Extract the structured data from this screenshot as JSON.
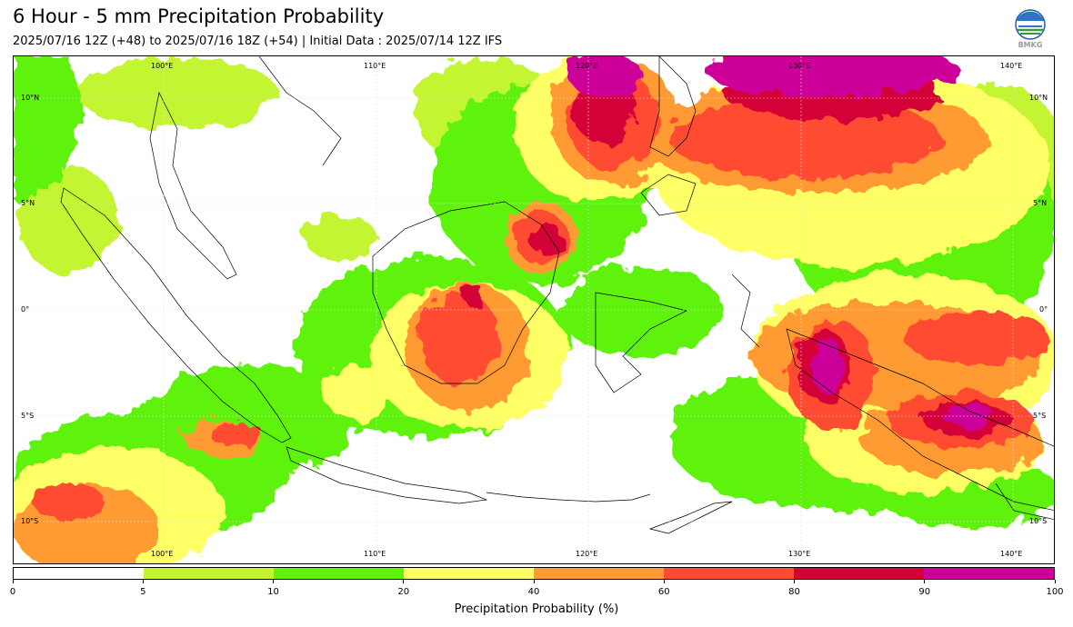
{
  "header": {
    "title": "6 Hour - 5 mm Precipitation Probability",
    "subtitle": "2025/07/16 12Z (+48) to 2025/07/16 18Z (+54) | Initial Data : 2025/07/14 12Z IFS",
    "logo_text": "BMKG"
  },
  "map": {
    "lon_labels_top": [
      "100°E",
      "110°E",
      "120°E",
      "130°E",
      "140°E"
    ],
    "lon_labels_bottom": [
      "100°E",
      "110°E",
      "120°E",
      "130°E",
      "140°E"
    ],
    "lat_labels_left": [
      "10°N",
      "5°N",
      "0°",
      "5°S",
      "10°S"
    ],
    "lat_labels_right": [
      "10°N",
      "5°N",
      "0°",
      "5°S",
      "10°S"
    ]
  },
  "colorbar": {
    "ticks": [
      "0",
      "5",
      "10",
      "20",
      "40",
      "60",
      "80",
      "90",
      "100"
    ],
    "colors": [
      "#ffffff",
      "#c3f531",
      "#5ff20a",
      "#ffff66",
      "#ff9b33",
      "#ff4b33",
      "#d40038",
      "#cc0099"
    ],
    "label": "Precipitation Probability (%)"
  }
}
